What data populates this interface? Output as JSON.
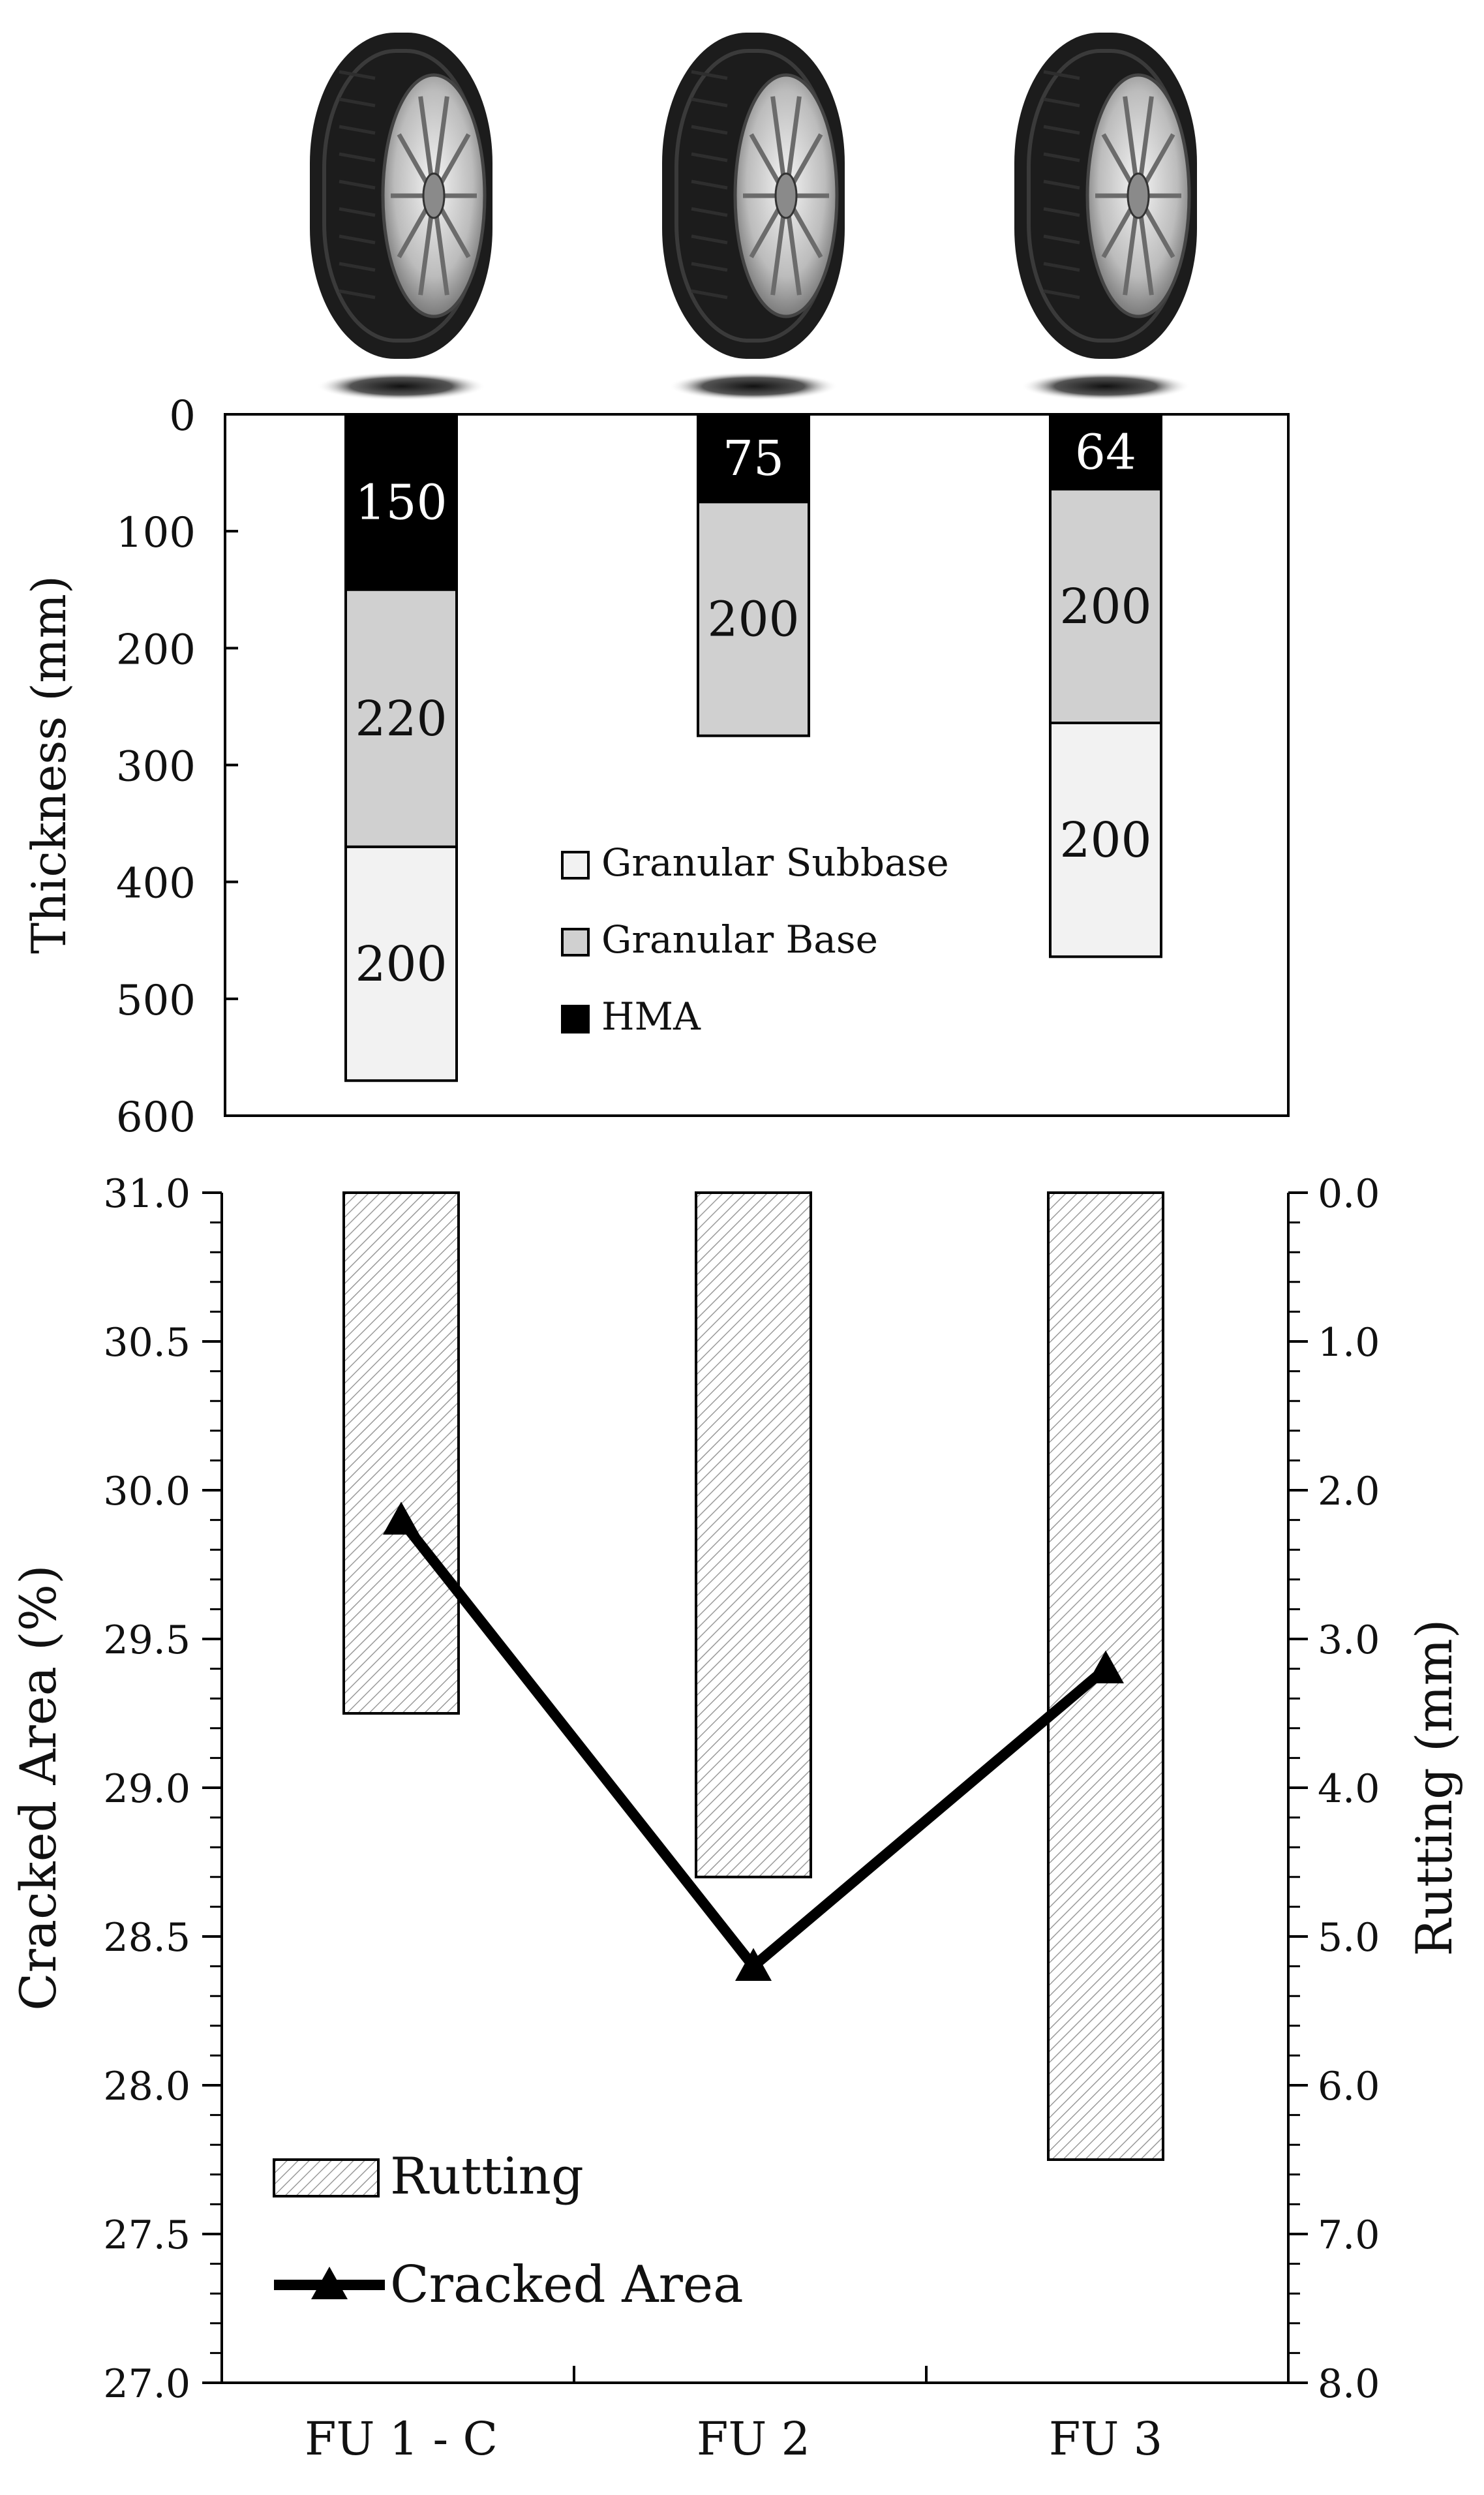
{
  "chart_data": [
    {
      "type": "bar",
      "stacked": true,
      "orientation": "downward",
      "categories": [
        "FU 1 - C",
        "FU 2",
        "FU 3"
      ],
      "ylabel": "Thickness (mm)",
      "ylim": [
        0,
        600
      ],
      "yticks": [
        "0",
        "100",
        "200",
        "300",
        "400",
        "500",
        "600"
      ],
      "series": [
        {
          "name": "HMA",
          "color": "#000000",
          "values": [
            150,
            75,
            64
          ]
        },
        {
          "name": "Granular Base",
          "color": "#d0d0d0",
          "values": [
            220,
            200,
            200
          ]
        },
        {
          "name": "Granular Subbase",
          "color": "#f2f2f2",
          "values": [
            200,
            0,
            200
          ]
        }
      ],
      "segment_labels": [
        [
          "150",
          "220",
          "200"
        ],
        [
          "75",
          "200",
          ""
        ],
        [
          "64",
          "200",
          "200"
        ]
      ],
      "legend": [
        "Granular Subbase",
        "Granular Base",
        "HMA"
      ],
      "legend_position": "center",
      "decoration": "tire-icon above each column"
    },
    {
      "type": "bar+line",
      "categories": [
        "FU 1 - C",
        "FU 2",
        "FU 3"
      ],
      "y_left": {
        "label": "Cracked Area (%)",
        "range": [
          27.0,
          31.0
        ],
        "ticks": [
          "27.0",
          "27.5",
          "28.0",
          "28.5",
          "29.0",
          "29.5",
          "30.0",
          "30.5",
          "31.0"
        ]
      },
      "y_right": {
        "label": "Rutting (mm)",
        "range": [
          0.0,
          8.0
        ],
        "inverted": true,
        "ticks": [
          "0.0",
          "1.0",
          "2.0",
          "3.0",
          "4.0",
          "5.0",
          "6.0",
          "7.0",
          "8.0"
        ]
      },
      "series": [
        {
          "name": "Rutting",
          "type": "bar",
          "axis": "right",
          "pattern": "hatched",
          "values": [
            3.5,
            4.6,
            6.5
          ]
        },
        {
          "name": "Cracked Area",
          "type": "line",
          "axis": "left",
          "marker": "triangle",
          "values": [
            29.9,
            28.4,
            29.4
          ]
        }
      ],
      "legend": [
        "Rutting",
        "Cracked Area"
      ],
      "legend_position": "bottom-left"
    }
  ]
}
